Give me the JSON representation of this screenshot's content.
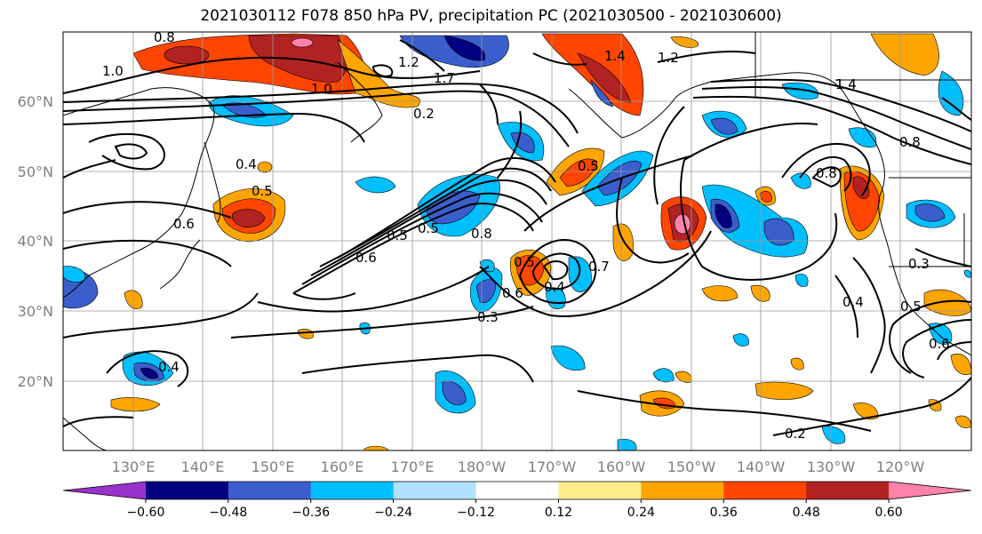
{
  "title": "2021030112 F078 850 hPa PV, precipitation PC (2021030500 - 2021030600)",
  "map": {
    "lat_labels": [
      "60°N",
      "50°N",
      "40°N",
      "30°N",
      "20°N"
    ],
    "lon_labels": [
      "130°E",
      "140°E",
      "150°E",
      "160°E",
      "170°E",
      "180°W",
      "170°W",
      "160°W",
      "150°W",
      "140°W",
      "130°W",
      "120°W"
    ],
    "contour_labels": [
      "0.8",
      "1.0",
      "1.2",
      "1.4",
      "1.0",
      "0.2",
      "1.7",
      "1.4",
      "1.2",
      "0.5",
      "0.6",
      "0.5",
      "0.5",
      "0.8",
      "0.6",
      "0.3",
      "0.7",
      "0.5",
      "0.4",
      "0.6",
      "0.5",
      "0.4",
      "0.8",
      "0.3",
      "0.5",
      "0.6",
      "0.4",
      "0.2",
      "1.4",
      "0.8",
      "0.4"
    ]
  },
  "colorbar": {
    "tick_labels": [
      "−0.60",
      "−0.48",
      "−0.36",
      "−0.24",
      "−0.12",
      "0.12",
      "0.24",
      "0.36",
      "0.48",
      "0.60"
    ],
    "colors": [
      "#9932cc",
      "#000080",
      "#3a5fcd",
      "#00bfff",
      "#b0e2ff",
      "#ffffff",
      "#ffec8b",
      "#ffa500",
      "#ff4500",
      "#b22222",
      "#ff82ab"
    ]
  },
  "colors": {
    "neg_strong": "#000080",
    "neg_mid": "#3a5fcd",
    "neg_light": "#00bfff",
    "pos_light": "#ffec8b",
    "pos_mid": "#ffa500",
    "pos_strong": "#ff4500",
    "pos_max": "#b22222",
    "pos_pink": "#ff82ab"
  }
}
